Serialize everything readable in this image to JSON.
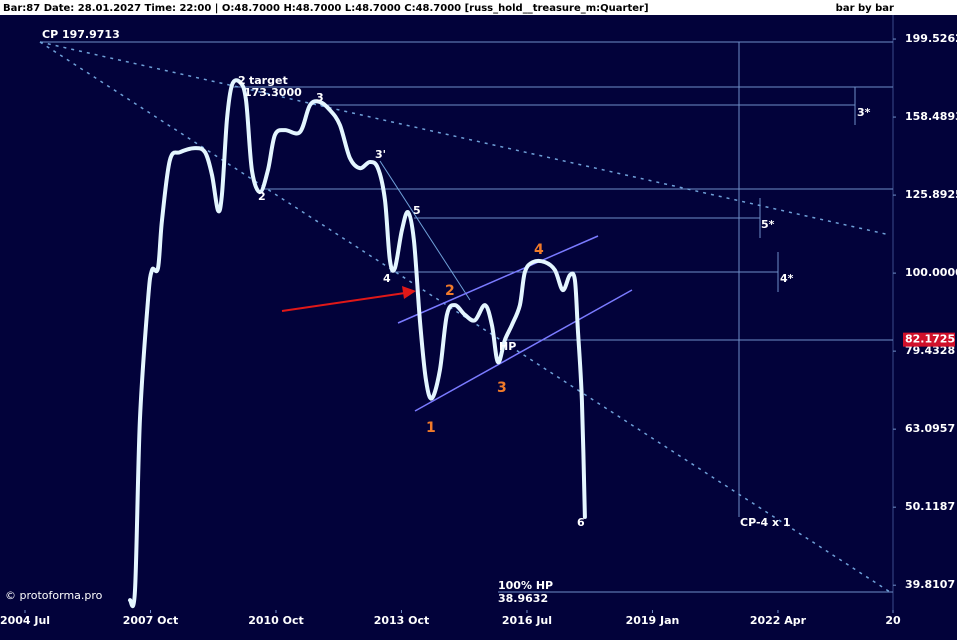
{
  "chart_data": {
    "type": "line",
    "title": "Bar:87 Date: 28.01.2027 Time: 22:00 | O:48.7000 H:48.7000 L:48.7000 C:48.7000 [russ_hold__treasure_m:Quarter]",
    "mode": "bar by bar",
    "log_y": true,
    "color": "#e4f6ff",
    "x": [
      10.04,
      10.52,
      10.99,
      11.76,
      12.14,
      12.72,
      13.1,
      13.86,
      14.82,
      16.25,
      17.21,
      17.88,
      18.45,
      18.83,
      19.31,
      19.79,
      20.55,
      21.13,
      21.7,
      22.47,
      23.23,
      23.9,
      24.86,
      26.29,
      27.25,
      28.2,
      29.16,
      30.11,
      31.07,
      32.03,
      32.98,
      33.75,
      34.42,
      34.89,
      35.37,
      36.04,
      36.62,
      37.19,
      37.76,
      38.34,
      38.91,
      39.67,
      40.34,
      41.11,
      42.07,
      43.02,
      43.98,
      44.65,
      45.22,
      45.89,
      46.56,
      47.32,
      47.8,
      48.57,
      49.71,
      50.67,
      51.43,
      52.1,
      52.58,
      52.87,
      53.25,
      53.54
    ],
    "values": [
      38.09,
      39.24,
      64.79,
      92.34,
      100.89,
      101.49,
      116.9,
      139.6,
      142.9,
      144.6,
      142.9,
      133.6,
      120.4,
      125.9,
      157.1,
      174.2,
      175.7,
      166.7,
      135.5,
      127.0,
      135.5,
      150.3,
      152.5,
      151.6,
      164.2,
      165.7,
      161.8,
      154.8,
      140.4,
      136.3,
      138.8,
      136.3,
      124.0,
      103.9,
      101.49,
      113.5,
      119.7,
      110.2,
      87.0,
      72.9,
      69.1,
      75.1,
      88.4,
      91.0,
      88.4,
      87.0,
      91.0,
      85.8,
      76.9,
      82.1,
      85.8,
      91.0,
      100.3,
      103.3,
      103.3,
      100.89,
      95.1,
      99.4,
      98.0,
      84.5,
      68.7,
      48.7
    ],
    "xlim": [
      -2.39,
      83.0
    ],
    "ylim": [
      37.0,
      214.2
    ],
    "xticks": [
      {
        "value": 0,
        "label": "2004 Jul"
      },
      {
        "value": 12,
        "label": "2007 Oct"
      },
      {
        "value": 24,
        "label": "2010 Oct"
      },
      {
        "value": 36,
        "label": "2013 Oct"
      },
      {
        "value": 48,
        "label": "2016 Jul"
      },
      {
        "value": 60,
        "label": "2019 Jan"
      },
      {
        "value": 72,
        "label": "2022 Apr"
      },
      {
        "value": 83,
        "label": "20"
      }
    ],
    "yticks": [
      199.5262,
      158.4893,
      125.8925,
      {
        "value": 100,
        "label": "100.0000"
      },
      79.4328,
      63.0957,
      50.1187,
      39.8107
    ],
    "last_price": 82.1725,
    "annotations": [
      "CP 197.9713",
      "2",
      "target",
      "173.3000",
      "3",
      "2",
      "3'",
      "5",
      "4",
      "1",
      "2",
      "3",
      "4",
      "HP",
      "6",
      "5*",
      "4*",
      "3*",
      "CP-4 x 1",
      "100% HP",
      "38.9632",
      "© protoforma.pro"
    ]
  }
}
